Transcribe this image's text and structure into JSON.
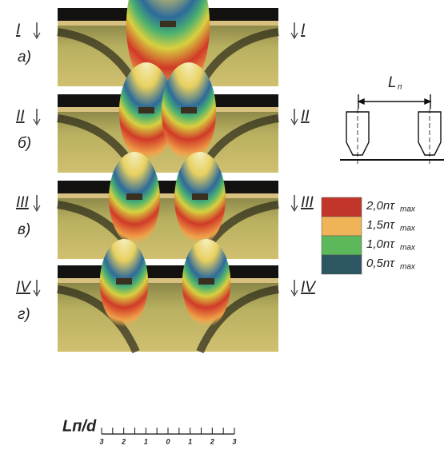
{
  "panels": [
    {
      "letter": "а)",
      "section_left": "I",
      "section_right": "I"
    },
    {
      "letter": "б)",
      "section_left": "II",
      "section_right": "II"
    },
    {
      "letter": "в)",
      "section_left": "III",
      "section_right": "III"
    },
    {
      "letter": "г)",
      "section_left": "IV",
      "section_right": "IV"
    }
  ],
  "diagram": {
    "label": "L",
    "label_sub": "п"
  },
  "legend": [
    {
      "text": "2,0nτ",
      "sub": "max",
      "color": "#c2352a"
    },
    {
      "text": "1,5nτ",
      "sub": "max",
      "color": "#f0b458"
    },
    {
      "text": "1,0nτ",
      "sub": "max",
      "color": "#5cb85a"
    },
    {
      "text": "0,5nτ",
      "sub": "max",
      "color": "#2c5662"
    }
  ],
  "scale": {
    "label": "Lп/d",
    "ticks": [
      "3",
      "2",
      "1",
      "0",
      "1",
      "2",
      "3"
    ]
  }
}
